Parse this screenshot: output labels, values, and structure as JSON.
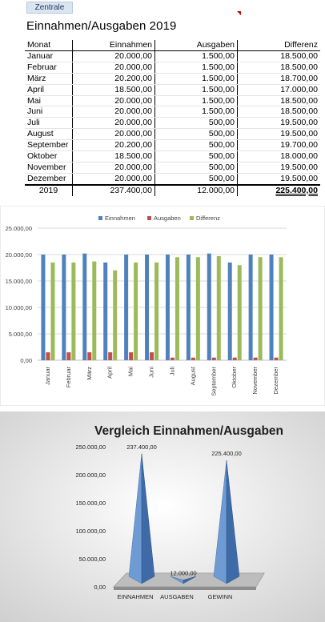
{
  "sheet": {
    "tab_label": "Zentrale",
    "title": "Einnahmen/Ausgaben 2019",
    "headers": [
      "Monat",
      "Einnahmen",
      "Ausgaben",
      "Differenz"
    ],
    "rows": [
      [
        "Januar",
        "20.000,00",
        "1.500,00",
        "18.500,00"
      ],
      [
        "Februar",
        "20.000,00",
        "1.500,00",
        "18.500,00"
      ],
      [
        "März",
        "20.200,00",
        "1.500,00",
        "18.700,00"
      ],
      [
        "April",
        "18.500,00",
        "1.500,00",
        "17.000,00"
      ],
      [
        "Mai",
        "20.000,00",
        "1.500,00",
        "18.500,00"
      ],
      [
        "Juni",
        "20.000,00",
        "1.500,00",
        "18.500,00"
      ],
      [
        "Juli",
        "20.000,00",
        "500,00",
        "19.500,00"
      ],
      [
        "August",
        "20.000,00",
        "500,00",
        "19.500,00"
      ],
      [
        "September",
        "20.200,00",
        "500,00",
        "19.700,00"
      ],
      [
        "Oktober",
        "18.500,00",
        "500,00",
        "18.000,00"
      ],
      [
        "November",
        "20.000,00",
        "500,00",
        "19.500,00"
      ],
      [
        "Dezember",
        "20.000,00",
        "500,00",
        "19.500,00"
      ]
    ],
    "totals": [
      "2019",
      "237.400,00",
      "12.000,00",
      "225.400,00"
    ]
  },
  "chart_data": [
    {
      "type": "bar",
      "categories": [
        "Januar",
        "Februar",
        "März",
        "April",
        "Mai",
        "Juni",
        "Juli",
        "August",
        "September",
        "Oktober",
        "November",
        "Dezember"
      ],
      "series": [
        {
          "name": "Einnahmen",
          "color": "#4f81bd",
          "values": [
            20000,
            20000,
            20200,
            18500,
            20000,
            20000,
            20000,
            20000,
            20200,
            18500,
            20000,
            20000
          ]
        },
        {
          "name": "Ausgaben",
          "color": "#c0504d",
          "values": [
            1500,
            1500,
            1500,
            1500,
            1500,
            1500,
            500,
            500,
            500,
            500,
            500,
            500
          ]
        },
        {
          "name": "Differenz",
          "color": "#9bbb59",
          "values": [
            18500,
            18500,
            18700,
            17000,
            18500,
            18500,
            19500,
            19500,
            19700,
            18000,
            19500,
            19500
          ]
        }
      ],
      "yticks": [
        "0,00",
        "5.000,00",
        "10.000,00",
        "15.000,00",
        "20.000,00",
        "25.000,00"
      ],
      "ylim": [
        0,
        25000
      ],
      "legend": "top",
      "grid": true
    },
    {
      "type": "bar",
      "style": "3d-pyramid",
      "title": "Vergleich Einnahmen/Ausgaben",
      "categories": [
        "EINNAHMEN",
        "AUSGABEN",
        "GEWINN"
      ],
      "values": [
        237400,
        12000,
        225400
      ],
      "data_labels": [
        "237.400,00",
        "12.000,00",
        "225.400,00"
      ],
      "yticks": [
        "0,00",
        "50.000,00",
        "100.000,00",
        "150.000,00",
        "200.000,00",
        "250.000,00"
      ],
      "ylim": [
        0,
        250000
      ],
      "color": "#4f81bd",
      "grid": false
    }
  ]
}
